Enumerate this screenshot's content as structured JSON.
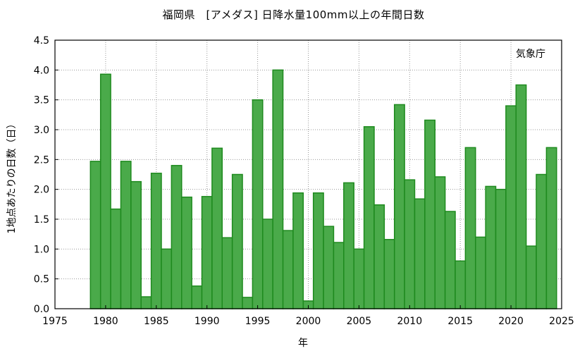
{
  "chart_data": {
    "type": "bar",
    "title": "福岡県　[アメダス] 日降水量100mm以上の年間日数",
    "xlabel": "年",
    "ylabel": "1地点あたりの日数（日）",
    "annotation": "気象庁",
    "xlim": [
      1975,
      2025
    ],
    "ylim": [
      0,
      4.5
    ],
    "x_ticks": [
      1975,
      1980,
      1985,
      1990,
      1995,
      2000,
      2005,
      2010,
      2015,
      2020,
      2025
    ],
    "y_ticks": [
      0.0,
      0.5,
      1.0,
      1.5,
      2.0,
      2.5,
      3.0,
      3.5,
      4.0,
      4.5
    ],
    "x_tick_labels": [
      "1975",
      "1980",
      "1985",
      "1990",
      "1995",
      "2000",
      "2005",
      "2010",
      "2015",
      "2020",
      "2025"
    ],
    "y_tick_labels": [
      "0.0",
      "0.5",
      "1.0",
      "1.5",
      "2.0",
      "2.5",
      "3.0",
      "3.5",
      "4.0",
      "4.5"
    ],
    "grid": true,
    "bar_color": "#4aaa4a",
    "bar_edge_color": "#1e8a1e",
    "x": [
      1979,
      1980,
      1981,
      1982,
      1983,
      1984,
      1985,
      1986,
      1987,
      1988,
      1989,
      1990,
      1991,
      1992,
      1993,
      1994,
      1995,
      1996,
      1997,
      1998,
      1999,
      2000,
      2001,
      2002,
      2003,
      2004,
      2005,
      2006,
      2007,
      2008,
      2009,
      2010,
      2011,
      2012,
      2013,
      2014,
      2015,
      2016,
      2017,
      2018,
      2019,
      2020,
      2021,
      2022,
      2023,
      2024
    ],
    "values": [
      2.47,
      3.93,
      1.67,
      2.47,
      2.13,
      0.2,
      2.27,
      1.0,
      2.4,
      1.87,
      0.38,
      1.88,
      2.69,
      1.19,
      2.25,
      0.19,
      3.5,
      1.5,
      4.0,
      1.31,
      1.94,
      0.13,
      1.94,
      1.38,
      1.11,
      2.11,
      1.0,
      3.05,
      1.74,
      1.16,
      3.42,
      2.16,
      1.84,
      3.16,
      2.21,
      1.63,
      0.8,
      2.7,
      1.2,
      2.05,
      2.0,
      3.4,
      3.75,
      1.05,
      2.25,
      2.7
    ]
  }
}
